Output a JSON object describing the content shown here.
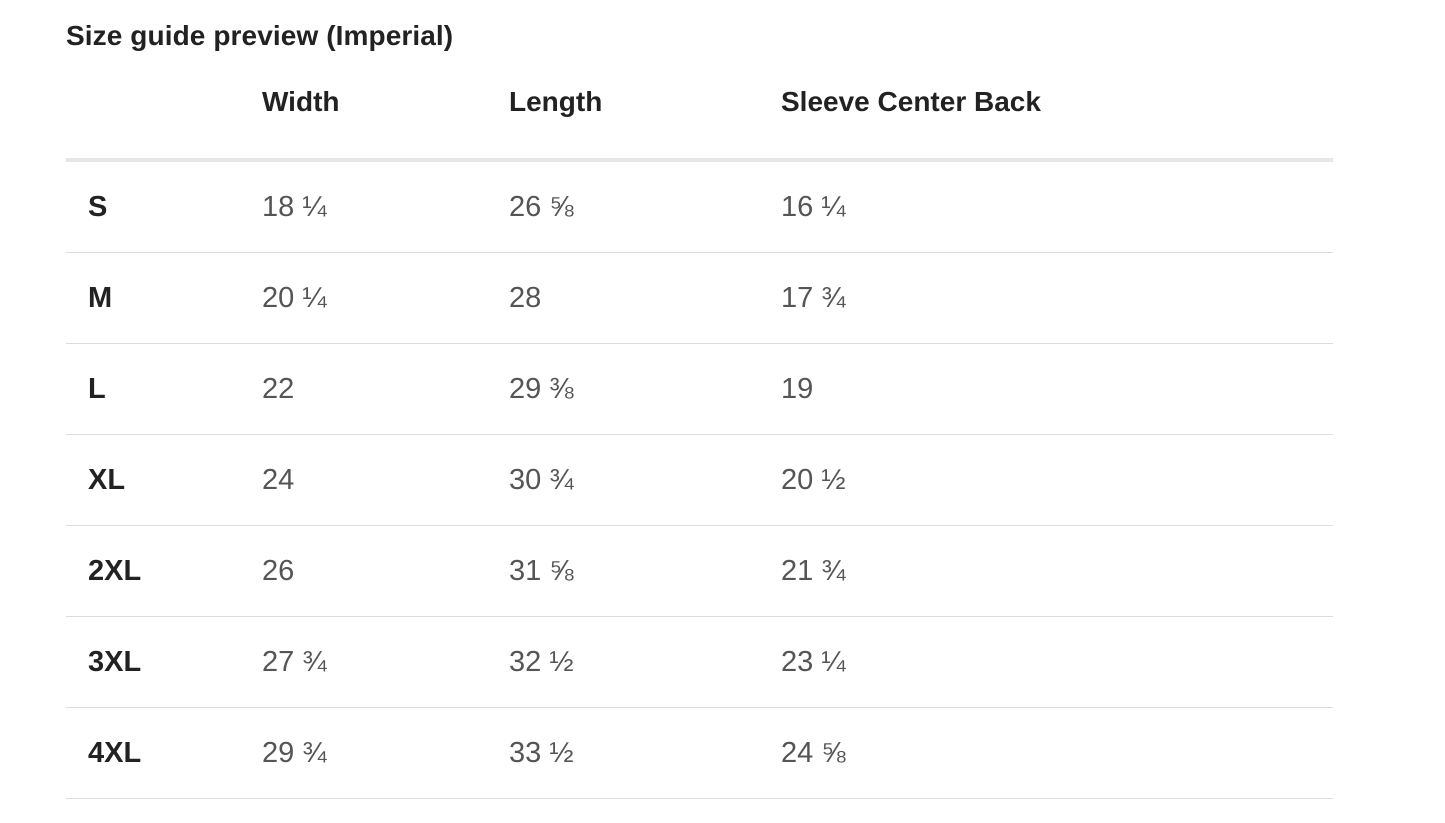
{
  "title": "Size guide preview (Imperial)",
  "columns": [
    "",
    "Width",
    "Length",
    "Sleeve Center Back"
  ],
  "rows": [
    {
      "size": "S",
      "width": "18 ¼",
      "length": "26 ⅝",
      "sleeve": "16 ¼"
    },
    {
      "size": "M",
      "width": "20 ¼",
      "length": "28",
      "sleeve": "17 ¾"
    },
    {
      "size": "L",
      "width": "22",
      "length": "29 ⅜",
      "sleeve": "19"
    },
    {
      "size": "XL",
      "width": "24",
      "length": "30 ¾",
      "sleeve": "20 ½"
    },
    {
      "size": "2XL",
      "width": "26",
      "length": "31 ⅝",
      "sleeve": "21 ¾"
    },
    {
      "size": "3XL",
      "width": "27 ¾",
      "length": "32 ½",
      "sleeve": "23 ¼"
    },
    {
      "size": "4XL",
      "width": "29 ¾",
      "length": "33 ½",
      "sleeve": "24 ⅝"
    }
  ]
}
